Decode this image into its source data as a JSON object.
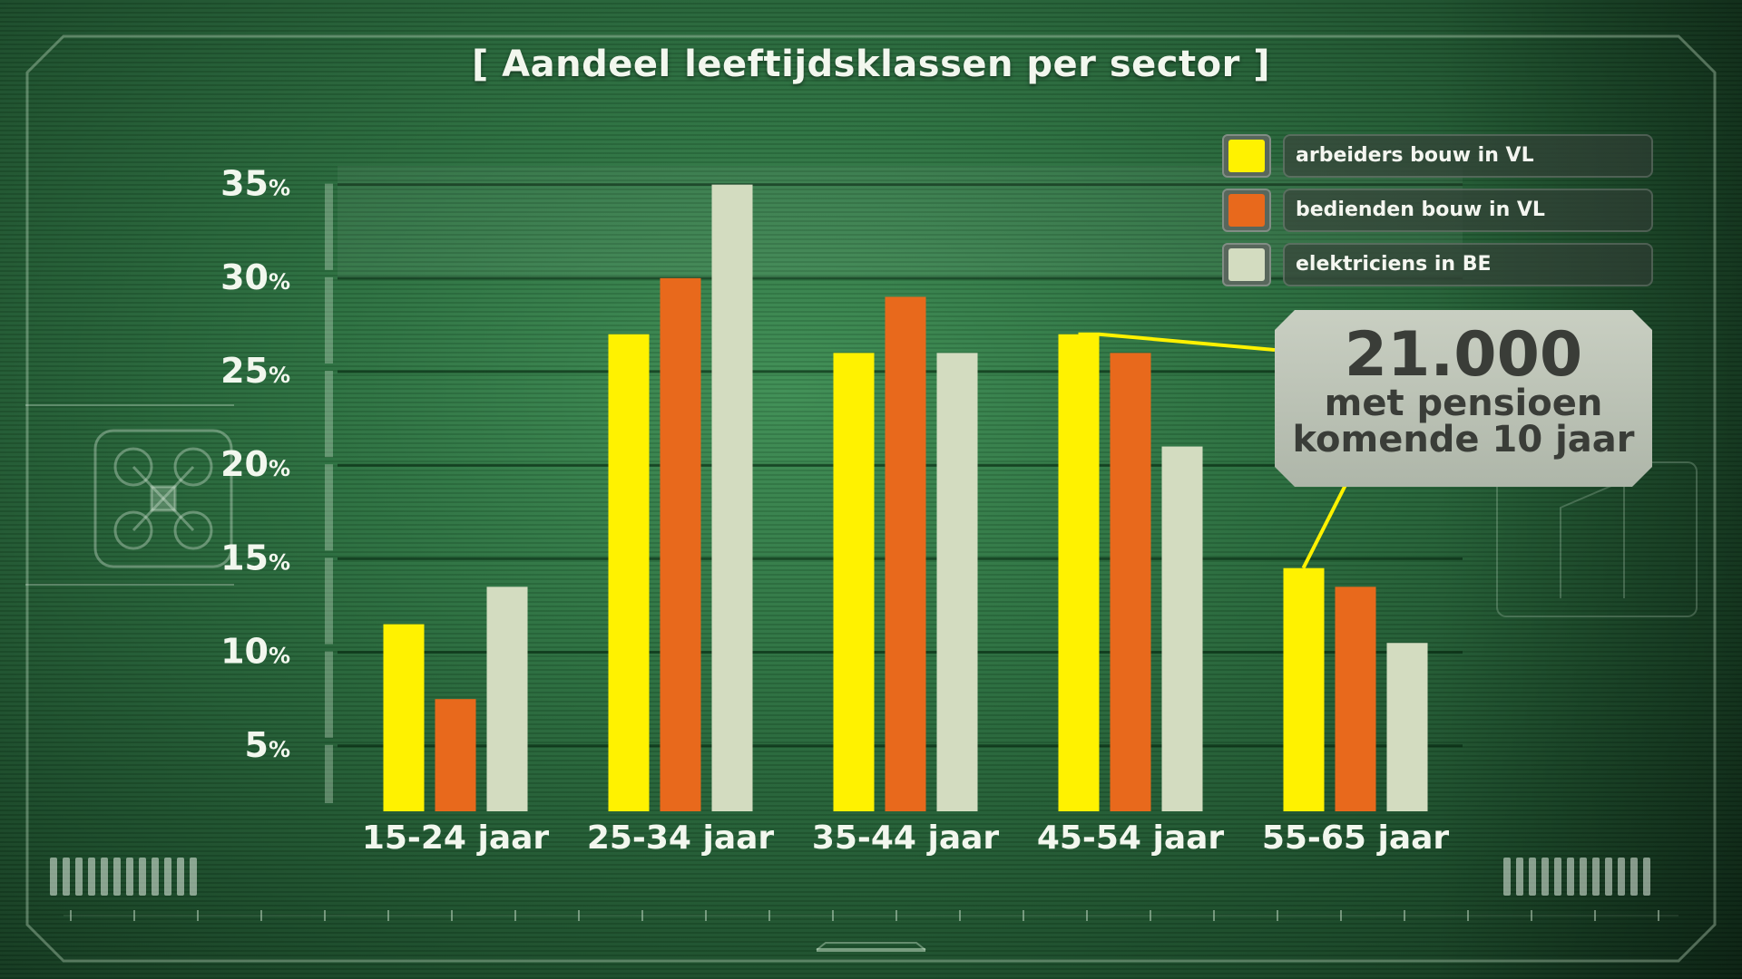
{
  "title": "[ Aandeel leeftijdsklassen per sector ]",
  "colors": {
    "arbeiders": "#fff200",
    "bedienden": "#e8691c",
    "elektriciens": "#d3dcc0",
    "text": "#f2f7ee"
  },
  "callout": {
    "big": "21.000",
    "line2": "met pensioen",
    "line3": "komende 10 jaar"
  },
  "chart_data": {
    "type": "bar",
    "title": "[ Aandeel leeftijdsklassen per sector ]",
    "categories": [
      "15-24 jaar",
      "25-34 jaar",
      "35-44 jaar",
      "45-54 jaar",
      "55-65 jaar"
    ],
    "series": [
      {
        "name": "arbeiders bouw in VL",
        "values": [
          11.5,
          27.0,
          26.0,
          27.0,
          14.5
        ]
      },
      {
        "name": "bedienden bouw in VL",
        "values": [
          7.5,
          30.0,
          29.0,
          26.0,
          13.5
        ]
      },
      {
        "name": "elektriciens in BE",
        "values": [
          13.5,
          35.0,
          26.0,
          21.0,
          10.5
        ]
      }
    ],
    "y_ticks": [
      {
        "num": "5",
        "unit": "%"
      },
      {
        "num": "10",
        "unit": "%"
      },
      {
        "num": "15",
        "unit": "%"
      },
      {
        "num": "20",
        "unit": "%"
      },
      {
        "num": "25",
        "unit": "%"
      },
      {
        "num": "30",
        "unit": "%"
      },
      {
        "num": "35",
        "unit": "%"
      }
    ],
    "ylim": [
      1.5,
      36
    ],
    "grid": true,
    "legend_position": "top-right",
    "xlabel": "",
    "ylabel": ""
  }
}
